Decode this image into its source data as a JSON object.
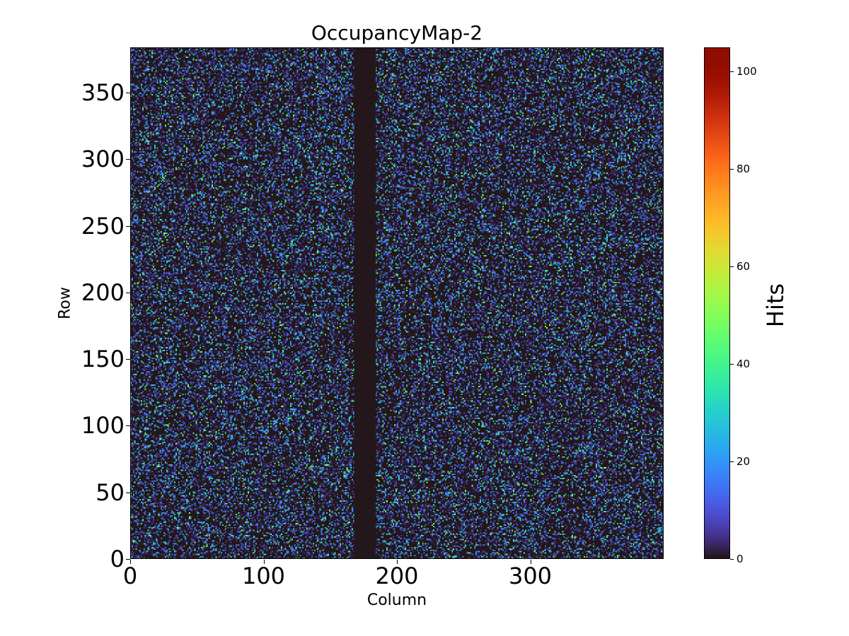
{
  "chart_data": {
    "type": "heatmap",
    "title": "OccupancyMap-2",
    "xlabel": "Column",
    "ylabel": "Row",
    "colorbar_label": "Hits",
    "colormap": "turbo",
    "n_columns": 400,
    "n_rows": 384,
    "xlim": [
      0,
      400
    ],
    "ylim": [
      0,
      384
    ],
    "vmin": 0,
    "vmax": 105,
    "dead_columns": [
      168,
      184
    ],
    "occupancy_fraction": 0.3,
    "typical_hits_range": [
      1,
      50
    ],
    "x_ticks": [
      "0",
      "100",
      "200",
      "300"
    ],
    "x_tick_values": [
      0,
      100,
      200,
      300
    ],
    "y_ticks": [
      "0",
      "50",
      "100",
      "150",
      "200",
      "250",
      "300",
      "350"
    ],
    "y_tick_values": [
      0,
      50,
      100,
      150,
      200,
      250,
      300,
      350
    ],
    "colorbar_ticks": [
      "0",
      "20",
      "40",
      "60",
      "80",
      "100"
    ],
    "colorbar_tick_values": [
      0,
      20,
      40,
      60,
      80,
      100
    ],
    "background_color": "#30123b"
  }
}
